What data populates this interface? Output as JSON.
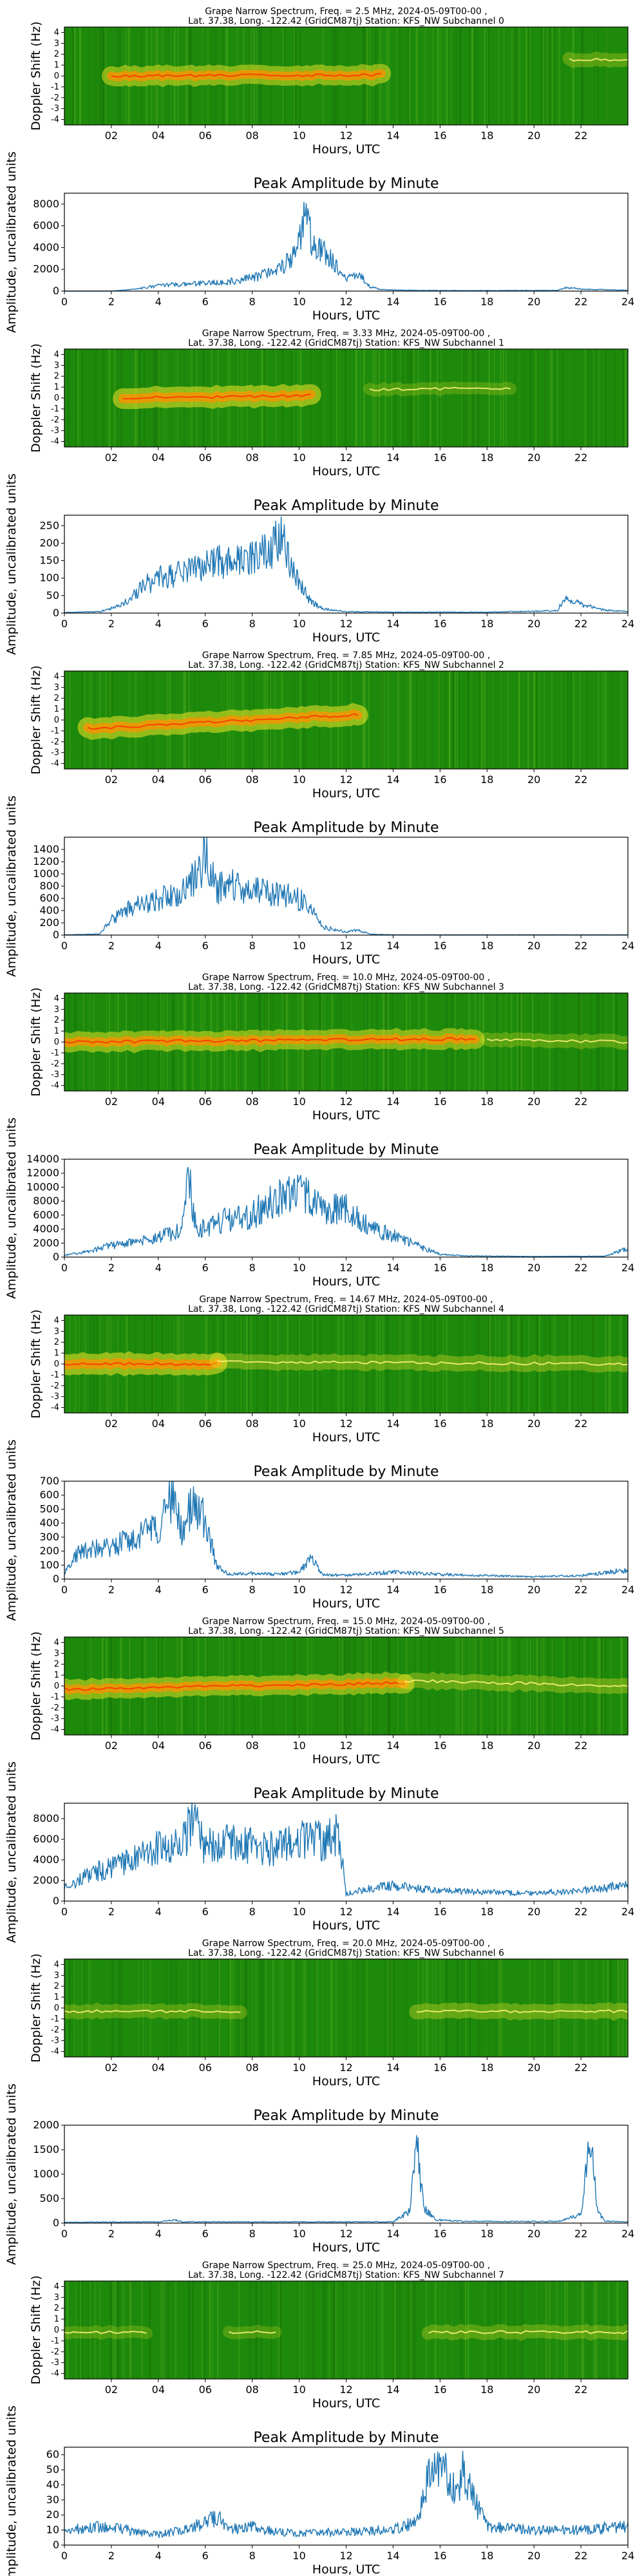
{
  "colors": {
    "line": "#1f77b4",
    "spectrogram_bg": "#1e8a0c",
    "trace_yellow": "#f2e626",
    "trace_orange": "#ff9000",
    "trace_red": "#ff2a00"
  },
  "spectrogram_common": {
    "xlabel": "Hours, UTC",
    "ylabel": "Doppler Shift (Hz)",
    "xtick_labels": [
      "02",
      "04",
      "06",
      "08",
      "10",
      "12",
      "14",
      "16",
      "18",
      "20",
      "22"
    ],
    "ytick_labels": [
      "4",
      "3",
      "2",
      "1",
      "0",
      "-1",
      "-2",
      "-3",
      "-4"
    ],
    "title_line2": "Lat.  37.38, Long. -122.42 (GridCM87tj) Station: KFS_NW Subchannel"
  },
  "amplitude_common": {
    "title": "Peak Amplitude by Minute",
    "xlabel": "Hours, UTC",
    "ylabel": "Amplitude, uncalibrated units",
    "xtick_labels": [
      "0",
      "2",
      "4",
      "6",
      "8",
      "10",
      "12",
      "14",
      "16",
      "18",
      "20",
      "22",
      "24"
    ]
  },
  "panels": [
    {
      "title1": "Grape Narrow Spectrum, Freq. = 2.5 MHz, 2024-05-09T00-00 ,",
      "subchannel": "0"
    },
    {
      "title1": "Grape Narrow Spectrum, Freq. = 3.33 MHz, 2024-05-09T00-00 ,",
      "subchannel": "1"
    },
    {
      "title1": "Grape Narrow Spectrum, Freq. = 7.85 MHz, 2024-05-09T00-00 ,",
      "subchannel": "2"
    },
    {
      "title1": "Grape Narrow Spectrum, Freq. = 10.0 MHz, 2024-05-09T00-00 ,",
      "subchannel": "3"
    },
    {
      "title1": "Grape Narrow Spectrum, Freq. = 14.67 MHz, 2024-05-09T00-00 ,",
      "subchannel": "4"
    },
    {
      "title1": "Grape Narrow Spectrum, Freq. = 15.0 MHz, 2024-05-09T00-00 ,",
      "subchannel": "5"
    },
    {
      "title1": "Grape Narrow Spectrum, Freq. = 20.0 MHz, 2024-05-09T00-00 ,",
      "subchannel": "6"
    },
    {
      "title1": "Grape Narrow Spectrum, Freq. = 25.0 MHz, 2024-05-09T00-00 ,",
      "subchannel": "7"
    }
  ],
  "chart_data": [
    {
      "type": "heatmap",
      "title": "Grape Narrow Spectrum, Freq. = 2.5 MHz, 2024-05-09T00-00 , Lat.  37.38, Long. -122.42 (GridCM87tj) Station: KFS_NW Subchannel 0",
      "xlabel": "Hours, UTC",
      "ylabel": "Doppler Shift (Hz)",
      "xlim": [
        0,
        24
      ],
      "ylim": [
        -4.5,
        4.5
      ],
      "traces": [
        {
          "t_start": 2,
          "t_end": 13.5,
          "doppler_start": 0.0,
          "doppler_end": 0.1,
          "intensity": 0.9
        },
        {
          "t_start": 21.5,
          "t_end": 24,
          "doppler_start": 1.5,
          "doppler_end": 1.5,
          "intensity": 0.5
        }
      ]
    },
    {
      "type": "line",
      "title": "Peak Amplitude by Minute",
      "xlabel": "Hours, UTC",
      "ylabel": "Amplitude, uncalibrated units",
      "xlim": [
        0,
        24
      ],
      "ylim": [
        0,
        9000
      ],
      "yticks": [
        0,
        2000,
        4000,
        6000,
        8000
      ],
      "envelope": [
        [
          0,
          0
        ],
        [
          2,
          0
        ],
        [
          3,
          200
        ],
        [
          4,
          600
        ],
        [
          6,
          900
        ],
        [
          7,
          1000
        ],
        [
          8,
          1500
        ],
        [
          9,
          2000
        ],
        [
          9.7,
          4000
        ],
        [
          10,
          6000
        ],
        [
          10.3,
          8500
        ],
        [
          10.6,
          5000
        ],
        [
          11,
          4500
        ],
        [
          11.5,
          3000
        ],
        [
          12,
          1200
        ],
        [
          12.5,
          2000
        ],
        [
          13,
          500
        ],
        [
          13.5,
          150
        ],
        [
          15,
          80
        ],
        [
          17,
          50
        ],
        [
          21,
          80
        ],
        [
          21.4,
          400
        ],
        [
          22,
          200
        ],
        [
          24,
          100
        ]
      ]
    },
    {
      "type": "heatmap",
      "title": "Grape Narrow Spectrum, Freq. = 3.33 MHz, 2024-05-09T00-00 , Lat.  37.38, Long. -122.42 (GridCM87tj) Station: KFS_NW Subchannel 1",
      "xlabel": "Hours, UTC",
      "ylabel": "Doppler Shift (Hz)",
      "xlim": [
        0,
        24
      ],
      "ylim": [
        -4.5,
        4.5
      ],
      "traces": [
        {
          "t_start": 2.5,
          "t_end": 10.5,
          "doppler_start": 0.0,
          "doppler_end": 0.2,
          "intensity": 1.0
        },
        {
          "t_start": 13,
          "t_end": 19,
          "doppler_start": 0.8,
          "doppler_end": 0.9,
          "intensity": 0.4
        }
      ]
    },
    {
      "type": "line",
      "title": "Peak Amplitude by Minute",
      "xlabel": "Hours, UTC",
      "ylabel": "Amplitude, uncalibrated units",
      "xlim": [
        0,
        24
      ],
      "ylim": [
        0,
        280
      ],
      "yticks": [
        0,
        50,
        100,
        150,
        200,
        250
      ],
      "envelope": [
        [
          0,
          2
        ],
        [
          1.5,
          5
        ],
        [
          2.5,
          30
        ],
        [
          3.5,
          100
        ],
        [
          4.5,
          130
        ],
        [
          5.5,
          150
        ],
        [
          6.5,
          170
        ],
        [
          7.5,
          180
        ],
        [
          8.5,
          210
        ],
        [
          9,
          240
        ],
        [
          9.3,
          270
        ],
        [
          9.6,
          180
        ],
        [
          10,
          100
        ],
        [
          10.5,
          40
        ],
        [
          11,
          15
        ],
        [
          12,
          5
        ],
        [
          14,
          3
        ],
        [
          18,
          3
        ],
        [
          21,
          8
        ],
        [
          21.3,
          55
        ],
        [
          22,
          30
        ],
        [
          23,
          10
        ],
        [
          24,
          5
        ]
      ]
    },
    {
      "type": "heatmap",
      "title": "Grape Narrow Spectrum, Freq. = 7.85 MHz, 2024-05-09T00-00 , Lat.  37.38, Long. -122.42 (GridCM87tj) Station: KFS_NW Subchannel 2",
      "xlabel": "Hours, UTC",
      "ylabel": "Doppler Shift (Hz)",
      "xlim": [
        0,
        24
      ],
      "ylim": [
        -4.5,
        4.5
      ],
      "traces": [
        {
          "t_start": 1,
          "t_end": 12.5,
          "doppler_start": -0.8,
          "doppler_end": 0.5,
          "intensity": 1.0
        }
      ]
    },
    {
      "type": "line",
      "title": "Peak Amplitude by Minute",
      "xlabel": "Hours, UTC",
      "ylabel": "Amplitude, uncalibrated units",
      "xlim": [
        0,
        24
      ],
      "ylim": [
        0,
        1600
      ],
      "yticks": [
        0,
        200,
        400,
        600,
        800,
        1000,
        1200,
        1400
      ],
      "envelope": [
        [
          0,
          5
        ],
        [
          1.5,
          20
        ],
        [
          2,
          300
        ],
        [
          3,
          600
        ],
        [
          4,
          700
        ],
        [
          5,
          800
        ],
        [
          5.5,
          1100
        ],
        [
          6,
          1550
        ],
        [
          6.5,
          900
        ],
        [
          7,
          1000
        ],
        [
          8,
          900
        ],
        [
          9,
          850
        ],
        [
          10,
          700
        ],
        [
          10.5,
          500
        ],
        [
          11,
          150
        ],
        [
          12,
          60
        ],
        [
          12.5,
          100
        ],
        [
          13,
          20
        ],
        [
          14,
          5
        ],
        [
          24,
          5
        ]
      ]
    },
    {
      "type": "heatmap",
      "title": "Grape Narrow Spectrum, Freq. = 10.0 MHz, 2024-05-09T00-00 , Lat.  37.38, Long. -122.42 (GridCM87tj) Station: KFS_NW Subchannel 3",
      "xlabel": "Hours, UTC",
      "ylabel": "Doppler Shift (Hz)",
      "xlim": [
        0,
        24
      ],
      "ylim": [
        -4.5,
        4.5
      ],
      "traces": [
        {
          "t_start": 0,
          "t_end": 17.5,
          "doppler_start": 0.0,
          "doppler_end": 0.3,
          "intensity": 0.9
        },
        {
          "t_start": 18,
          "t_end": 24,
          "doppler_start": 0.2,
          "doppler_end": 0.0,
          "intensity": 0.5
        }
      ]
    },
    {
      "type": "line",
      "title": "Peak Amplitude by Minute",
      "xlabel": "Hours, UTC",
      "ylabel": "Amplitude, uncalibrated units",
      "xlim": [
        0,
        24
      ],
      "ylim": [
        0,
        14000
      ],
      "yticks": [
        0,
        2000,
        4000,
        6000,
        8000,
        10000,
        12000,
        14000
      ],
      "envelope": [
        [
          0,
          300
        ],
        [
          1,
          1000
        ],
        [
          2,
          2000
        ],
        [
          3,
          2500
        ],
        [
          4,
          3500
        ],
        [
          5,
          4500
        ],
        [
          5.3,
          14000
        ],
        [
          5.6,
          5000
        ],
        [
          6,
          5000
        ],
        [
          7,
          6500
        ],
        [
          8,
          7000
        ],
        [
          9,
          10000
        ],
        [
          10,
          11000
        ],
        [
          11,
          8000
        ],
        [
          12,
          8500
        ],
        [
          13,
          5000
        ],
        [
          14,
          3500
        ],
        [
          15,
          2000
        ],
        [
          16,
          500
        ],
        [
          17,
          200
        ],
        [
          20,
          100
        ],
        [
          23,
          150
        ],
        [
          24,
          1500
        ]
      ]
    },
    {
      "type": "heatmap",
      "title": "Grape Narrow Spectrum, Freq. = 14.67 MHz, 2024-05-09T00-00 , Lat.  37.38, Long. -122.42 (GridCM87tj) Station: KFS_NW Subchannel 4",
      "xlabel": "Hours, UTC",
      "ylabel": "Doppler Shift (Hz)",
      "xlim": [
        0,
        24
      ],
      "ylim": [
        -4.5,
        4.5
      ],
      "traces": [
        {
          "t_start": 0,
          "t_end": 6.5,
          "doppler_start": 0.0,
          "doppler_end": 0.0,
          "intensity": 1.0
        },
        {
          "t_start": 6.5,
          "t_end": 24,
          "doppler_start": 0.2,
          "doppler_end": 0.0,
          "intensity": 0.6
        }
      ]
    },
    {
      "type": "line",
      "title": "Peak Amplitude by Minute",
      "xlabel": "Hours, UTC",
      "ylabel": "Amplitude, uncalibrated units",
      "xlim": [
        0,
        24
      ],
      "ylim": [
        0,
        700
      ],
      "yticks": [
        0,
        100,
        200,
        300,
        400,
        500,
        600,
        700
      ],
      "envelope": [
        [
          0,
          50
        ],
        [
          0.5,
          200
        ],
        [
          1,
          250
        ],
        [
          2,
          280
        ],
        [
          3,
          350
        ],
        [
          4,
          450
        ],
        [
          4.6,
          700
        ],
        [
          5,
          400
        ],
        [
          5.5,
          680
        ],
        [
          6,
          500
        ],
        [
          6.5,
          100
        ],
        [
          7,
          40
        ],
        [
          8,
          50
        ],
        [
          9,
          40
        ],
        [
          10,
          60
        ],
        [
          10.5,
          180
        ],
        [
          11,
          40
        ],
        [
          12,
          30
        ],
        [
          14,
          60
        ],
        [
          16,
          40
        ],
        [
          18,
          30
        ],
        [
          20,
          20
        ],
        [
          22,
          30
        ],
        [
          24,
          80
        ]
      ]
    },
    {
      "type": "heatmap",
      "title": "Grape Narrow Spectrum, Freq. = 15.0 MHz, 2024-05-09T00-00 , Lat.  37.38, Long. -122.42 (GridCM87tj) Station: KFS_NW Subchannel 5",
      "xlabel": "Hours, UTC",
      "ylabel": "Doppler Shift (Hz)",
      "xlim": [
        0,
        24
      ],
      "ylim": [
        -4.5,
        4.5
      ],
      "traces": [
        {
          "t_start": 0,
          "t_end": 14.5,
          "doppler_start": -0.3,
          "doppler_end": 0.3,
          "intensity": 0.9
        },
        {
          "t_start": 14.5,
          "t_end": 24,
          "doppler_start": 0.5,
          "doppler_end": 0.0,
          "intensity": 0.6
        }
      ]
    },
    {
      "type": "line",
      "title": "Peak Amplitude by Minute",
      "xlabel": "Hours, UTC",
      "ylabel": "Amplitude, uncalibrated units",
      "xlim": [
        0,
        24
      ],
      "ylim": [
        0,
        9500
      ],
      "yticks": [
        0,
        2000,
        4000,
        6000,
        8000
      ],
      "envelope": [
        [
          0,
          1500
        ],
        [
          1,
          3000
        ],
        [
          2,
          4000
        ],
        [
          3,
          5000
        ],
        [
          4,
          6500
        ],
        [
          5,
          7000
        ],
        [
          5.5,
          9500
        ],
        [
          6,
          6000
        ],
        [
          7,
          7000
        ],
        [
          8,
          6500
        ],
        [
          9,
          6000
        ],
        [
          10,
          7500
        ],
        [
          11,
          7000
        ],
        [
          11.7,
          8000
        ],
        [
          12,
          800
        ],
        [
          13,
          1500
        ],
        [
          14,
          1800
        ],
        [
          15,
          1500
        ],
        [
          16,
          1200
        ],
        [
          18,
          1000
        ],
        [
          20,
          900
        ],
        [
          22,
          1200
        ],
        [
          24,
          1800
        ]
      ]
    },
    {
      "type": "heatmap",
      "title": "Grape Narrow Spectrum, Freq. = 20.0 MHz, 2024-05-09T00-00 , Lat.  37.38, Long. -122.42 (GridCM87tj) Station: KFS_NW Subchannel 6",
      "xlabel": "Hours, UTC",
      "ylabel": "Doppler Shift (Hz)",
      "xlim": [
        0,
        24
      ],
      "ylim": [
        -4.5,
        4.5
      ],
      "traces": [
        {
          "t_start": 0,
          "t_end": 7.5,
          "doppler_start": -0.3,
          "doppler_end": -0.3,
          "intensity": 0.5
        },
        {
          "t_start": 15,
          "t_end": 24,
          "doppler_start": -0.3,
          "doppler_end": -0.3,
          "intensity": 0.6
        }
      ]
    },
    {
      "type": "line",
      "title": "Peak Amplitude by Minute",
      "xlabel": "Hours, UTC",
      "ylabel": "Amplitude, uncalibrated units",
      "xlim": [
        0,
        24
      ],
      "ylim": [
        0,
        2000
      ],
      "yticks": [
        0,
        500,
        1000,
        1500,
        2000
      ],
      "envelope": [
        [
          0,
          20
        ],
        [
          4,
          30
        ],
        [
          4.7,
          80
        ],
        [
          5,
          30
        ],
        [
          14,
          30
        ],
        [
          14.7,
          300
        ],
        [
          15,
          1900
        ],
        [
          15.3,
          400
        ],
        [
          15.8,
          80
        ],
        [
          17,
          40
        ],
        [
          21,
          40
        ],
        [
          22,
          200
        ],
        [
          22.4,
          2000
        ],
        [
          22.7,
          300
        ],
        [
          23,
          50
        ],
        [
          24,
          30
        ]
      ]
    },
    {
      "type": "heatmap",
      "title": "Grape Narrow Spectrum, Freq. = 25.0 MHz, 2024-05-09T00-00 , Lat.  37.38, Long. -122.42 (GridCM87tj) Station: KFS_NW Subchannel 7",
      "xlabel": "Hours, UTC",
      "ylabel": "Doppler Shift (Hz)",
      "xlim": [
        0,
        24
      ],
      "ylim": [
        -4.5,
        4.5
      ],
      "traces": [
        {
          "t_start": 0,
          "t_end": 3.5,
          "doppler_start": -0.2,
          "doppler_end": -0.2,
          "intensity": 0.4
        },
        {
          "t_start": 7,
          "t_end": 9,
          "doppler_start": -0.2,
          "doppler_end": -0.2,
          "intensity": 0.4
        },
        {
          "t_start": 15.5,
          "t_end": 24,
          "doppler_start": -0.2,
          "doppler_end": -0.2,
          "intensity": 0.5
        }
      ]
    },
    {
      "type": "line",
      "title": "Peak Amplitude by Minute",
      "xlabel": "Hours, UTC",
      "ylabel": "Amplitude, uncalibrated units",
      "xlim": [
        0,
        24
      ],
      "ylim": [
        0,
        65
      ],
      "yticks": [
        0,
        10,
        20,
        30,
        40,
        50,
        60
      ],
      "envelope": [
        [
          0,
          10
        ],
        [
          1,
          14
        ],
        [
          2,
          15
        ],
        [
          3,
          10
        ],
        [
          4,
          8
        ],
        [
          5,
          12
        ],
        [
          6,
          18
        ],
        [
          6.5,
          22
        ],
        [
          7,
          12
        ],
        [
          8,
          15
        ],
        [
          9,
          10
        ],
        [
          12,
          10
        ],
        [
          14,
          12
        ],
        [
          15,
          20
        ],
        [
          15.5,
          55
        ],
        [
          16,
          62
        ],
        [
          16.5,
          45
        ],
        [
          17,
          55
        ],
        [
          17.5,
          35
        ],
        [
          18,
          15
        ],
        [
          20,
          12
        ],
        [
          22,
          12
        ],
        [
          24,
          15
        ]
      ]
    }
  ]
}
